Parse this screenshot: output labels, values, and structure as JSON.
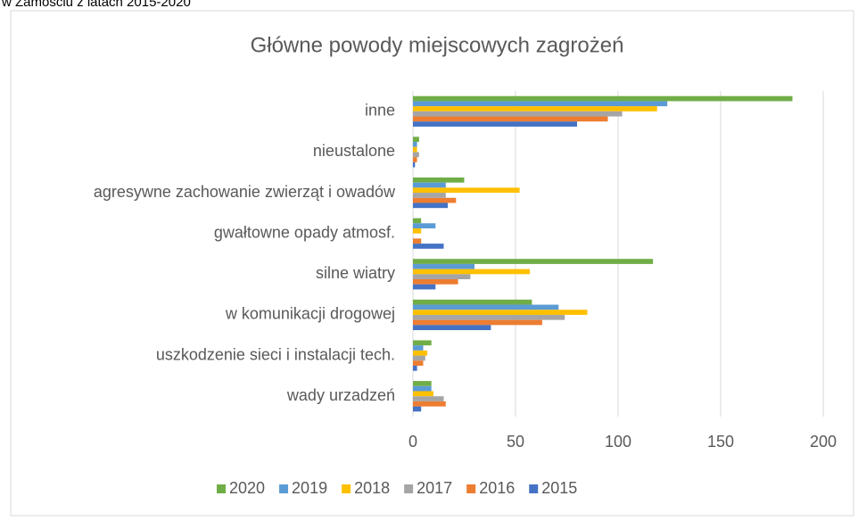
{
  "chart_data": {
    "type": "hbar",
    "caption": "w Zamościu z latach 2015-2020",
    "title": "Główne powody miejscowych zagrożeń",
    "categories": [
      "inne",
      "nieustalone",
      "agresywne zachowanie zwierząt i owadów",
      "gwałtowne opady atmosf.",
      "silne wiatry",
      "w komunikacji drogowej",
      "uszkodzenie sieci i instalacji tech.",
      "wady urzadzeń"
    ],
    "series": [
      {
        "name": "2020",
        "color": "#70ad47",
        "values": [
          185,
          3,
          25,
          4,
          117,
          58,
          9,
          9
        ]
      },
      {
        "name": "2019",
        "color": "#5b9bd5",
        "values": [
          124,
          2,
          16,
          11,
          30,
          71,
          5,
          9
        ]
      },
      {
        "name": "2018",
        "color": "#ffc000",
        "values": [
          119,
          2,
          52,
          4,
          57,
          85,
          7,
          10
        ]
      },
      {
        "name": "2017",
        "color": "#a5a5a5",
        "values": [
          102,
          3,
          16,
          0,
          28,
          74,
          6,
          15
        ]
      },
      {
        "name": "2016",
        "color": "#ed7d31",
        "values": [
          95,
          2,
          21,
          4,
          22,
          63,
          5,
          16
        ]
      },
      {
        "name": "2015",
        "color": "#4472c4",
        "values": [
          80,
          1,
          17,
          15,
          11,
          38,
          2,
          4
        ]
      }
    ],
    "xlim": [
      0,
      200
    ],
    "xticks": [
      0,
      50,
      100,
      150,
      200
    ],
    "grid": true,
    "legend": "bottom"
  }
}
